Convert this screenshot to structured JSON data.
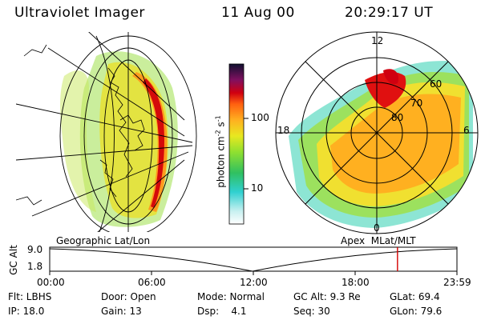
{
  "header": {
    "instrument": "Ultraviolet Imager",
    "date": "11 Aug 00",
    "time": "20:29:17 UT"
  },
  "colorbar": {
    "label": "photon cm",
    "label_sup1": "-2",
    "label_s": "s",
    "label_sup2": "-1",
    "ticks": [
      "100",
      "10"
    ]
  },
  "left_map": {
    "caption": "Geographic Lat/Lon"
  },
  "polar_map": {
    "caption": "Apex  MLat/MLT",
    "mlt_labels": {
      "top": "12",
      "left": "18",
      "right": "6",
      "bottom": "0"
    },
    "lat_labels": [
      "60",
      "70",
      "80"
    ]
  },
  "altitude_plot": {
    "ylabel": "GC Alt",
    "y_ticks": [
      "9.0",
      "1.8"
    ],
    "x_ticks": [
      "00:00",
      "06:00",
      "12:00",
      "18:00",
      "23:59"
    ],
    "marker_color": "#d40000",
    "marker_time_fraction": 0.854
  },
  "status": {
    "row1": {
      "flt": "Flt: LBHS",
      "door": "Door: Open",
      "mode": "Mode: Normal",
      "gcalt": "GC Alt: 9.3 Re",
      "glat": "GLat: 69.4"
    },
    "row2": {
      "ip": "IP: 18.0",
      "gain": "Gain: 13",
      "dsp": "Dsp:    4.1",
      "seq": "Seq: 30",
      "glon": "GLon: 79.6"
    }
  }
}
